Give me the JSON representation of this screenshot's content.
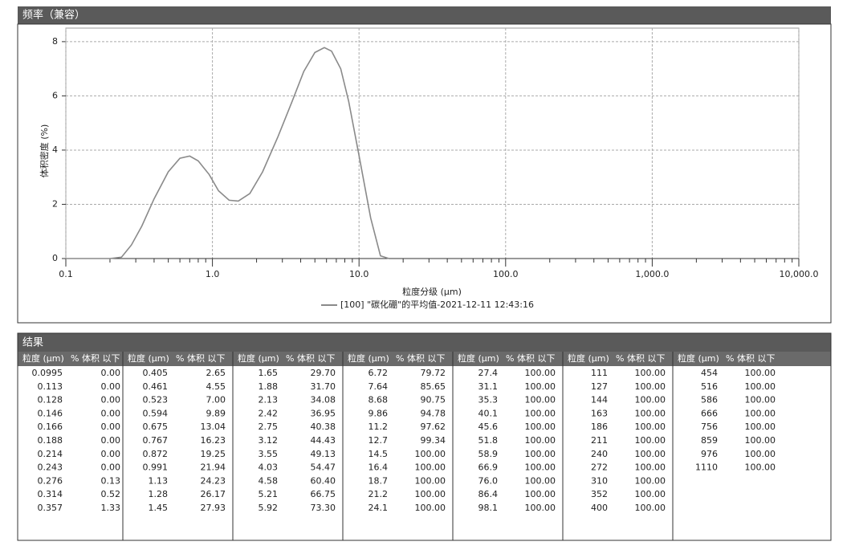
{
  "chart_data": {
    "type": "line",
    "title": "频率（兼容）",
    "y_label": "体积密度 (%)",
    "x_label": "粒度分级 (μm)",
    "log_x": true,
    "grid": true,
    "color": "#8a8a8a",
    "xlim": [
      0.1,
      10000
    ],
    "xticks": [
      0.1,
      {
        "value": 1,
        "label": "1.0"
      },
      {
        "value": 10,
        "label": "10.0"
      },
      {
        "value": 100,
        "label": "100.0"
      },
      {
        "value": 1000,
        "label": "1,000.0"
      },
      {
        "value": 10000,
        "label": "10,000.0"
      }
    ],
    "ylim": [
      0,
      8.5
    ],
    "yticks": [
      0,
      2,
      4,
      6,
      8
    ],
    "series": [
      {
        "name": "[100] \"碳化硼\"的平均值-2021-12-11 12:43:16",
        "color": "#8a8a8a",
        "x": [
          0.1,
          0.2,
          0.24,
          0.28,
          0.33,
          0.4,
          0.5,
          0.6,
          0.7,
          0.8,
          0.95,
          1.1,
          1.3,
          1.5,
          1.8,
          2.2,
          2.8,
          3.5,
          4.2,
          5.0,
          5.8,
          6.5,
          7.5,
          8.5,
          10,
          12,
          14,
          16
        ],
        "values": [
          0,
          0,
          0.05,
          0.5,
          1.2,
          2.2,
          3.2,
          3.7,
          3.78,
          3.6,
          3.1,
          2.5,
          2.15,
          2.12,
          2.4,
          3.2,
          4.5,
          5.8,
          6.9,
          7.6,
          7.78,
          7.65,
          7.0,
          5.8,
          3.8,
          1.5,
          0.1,
          0
        ]
      }
    ]
  },
  "results": {
    "title": "结果",
    "columns": [
      "粒度 (μm)",
      "% 体积 以下"
    ],
    "groups": [
      [
        [
          "0.0995",
          "0.00"
        ],
        [
          "0.113",
          "0.00"
        ],
        [
          "0.128",
          "0.00"
        ],
        [
          "0.146",
          "0.00"
        ],
        [
          "0.166",
          "0.00"
        ],
        [
          "0.188",
          "0.00"
        ],
        [
          "0.214",
          "0.00"
        ],
        [
          "0.243",
          "0.00"
        ],
        [
          "0.276",
          "0.13"
        ],
        [
          "0.314",
          "0.52"
        ],
        [
          "0.357",
          "1.33"
        ]
      ],
      [
        [
          "0.405",
          "2.65"
        ],
        [
          "0.461",
          "4.55"
        ],
        [
          "0.523",
          "7.00"
        ],
        [
          "0.594",
          "9.89"
        ],
        [
          "0.675",
          "13.04"
        ],
        [
          "0.767",
          "16.23"
        ],
        [
          "0.872",
          "19.25"
        ],
        [
          "0.991",
          "21.94"
        ],
        [
          "1.13",
          "24.23"
        ],
        [
          "1.28",
          "26.17"
        ],
        [
          "1.45",
          "27.93"
        ]
      ],
      [
        [
          "1.65",
          "29.70"
        ],
        [
          "1.88",
          "31.70"
        ],
        [
          "2.13",
          "34.08"
        ],
        [
          "2.42",
          "36.95"
        ],
        [
          "2.75",
          "40.38"
        ],
        [
          "3.12",
          "44.43"
        ],
        [
          "3.55",
          "49.13"
        ],
        [
          "4.03",
          "54.47"
        ],
        [
          "4.58",
          "60.40"
        ],
        [
          "5.21",
          "66.75"
        ],
        [
          "5.92",
          "73.30"
        ]
      ],
      [
        [
          "6.72",
          "79.72"
        ],
        [
          "7.64",
          "85.65"
        ],
        [
          "8.68",
          "90.75"
        ],
        [
          "9.86",
          "94.78"
        ],
        [
          "11.2",
          "97.62"
        ],
        [
          "12.7",
          "99.34"
        ],
        [
          "14.5",
          "100.00"
        ],
        [
          "16.4",
          "100.00"
        ],
        [
          "18.7",
          "100.00"
        ],
        [
          "21.2",
          "100.00"
        ],
        [
          "24.1",
          "100.00"
        ]
      ],
      [
        [
          "27.4",
          "100.00"
        ],
        [
          "31.1",
          "100.00"
        ],
        [
          "35.3",
          "100.00"
        ],
        [
          "40.1",
          "100.00"
        ],
        [
          "45.6",
          "100.00"
        ],
        [
          "51.8",
          "100.00"
        ],
        [
          "58.9",
          "100.00"
        ],
        [
          "66.9",
          "100.00"
        ],
        [
          "76.0",
          "100.00"
        ],
        [
          "86.4",
          "100.00"
        ],
        [
          "98.1",
          "100.00"
        ]
      ],
      [
        [
          "111",
          "100.00"
        ],
        [
          "127",
          "100.00"
        ],
        [
          "144",
          "100.00"
        ],
        [
          "163",
          "100.00"
        ],
        [
          "186",
          "100.00"
        ],
        [
          "211",
          "100.00"
        ],
        [
          "240",
          "100.00"
        ],
        [
          "272",
          "100.00"
        ],
        [
          "310",
          "100.00"
        ],
        [
          "352",
          "100.00"
        ],
        [
          "400",
          "100.00"
        ]
      ],
      [
        [
          "454",
          "100.00"
        ],
        [
          "516",
          "100.00"
        ],
        [
          "586",
          "100.00"
        ],
        [
          "666",
          "100.00"
        ],
        [
          "756",
          "100.00"
        ],
        [
          "859",
          "100.00"
        ],
        [
          "976",
          "100.00"
        ],
        [
          "1110",
          "100.00"
        ]
      ]
    ]
  }
}
